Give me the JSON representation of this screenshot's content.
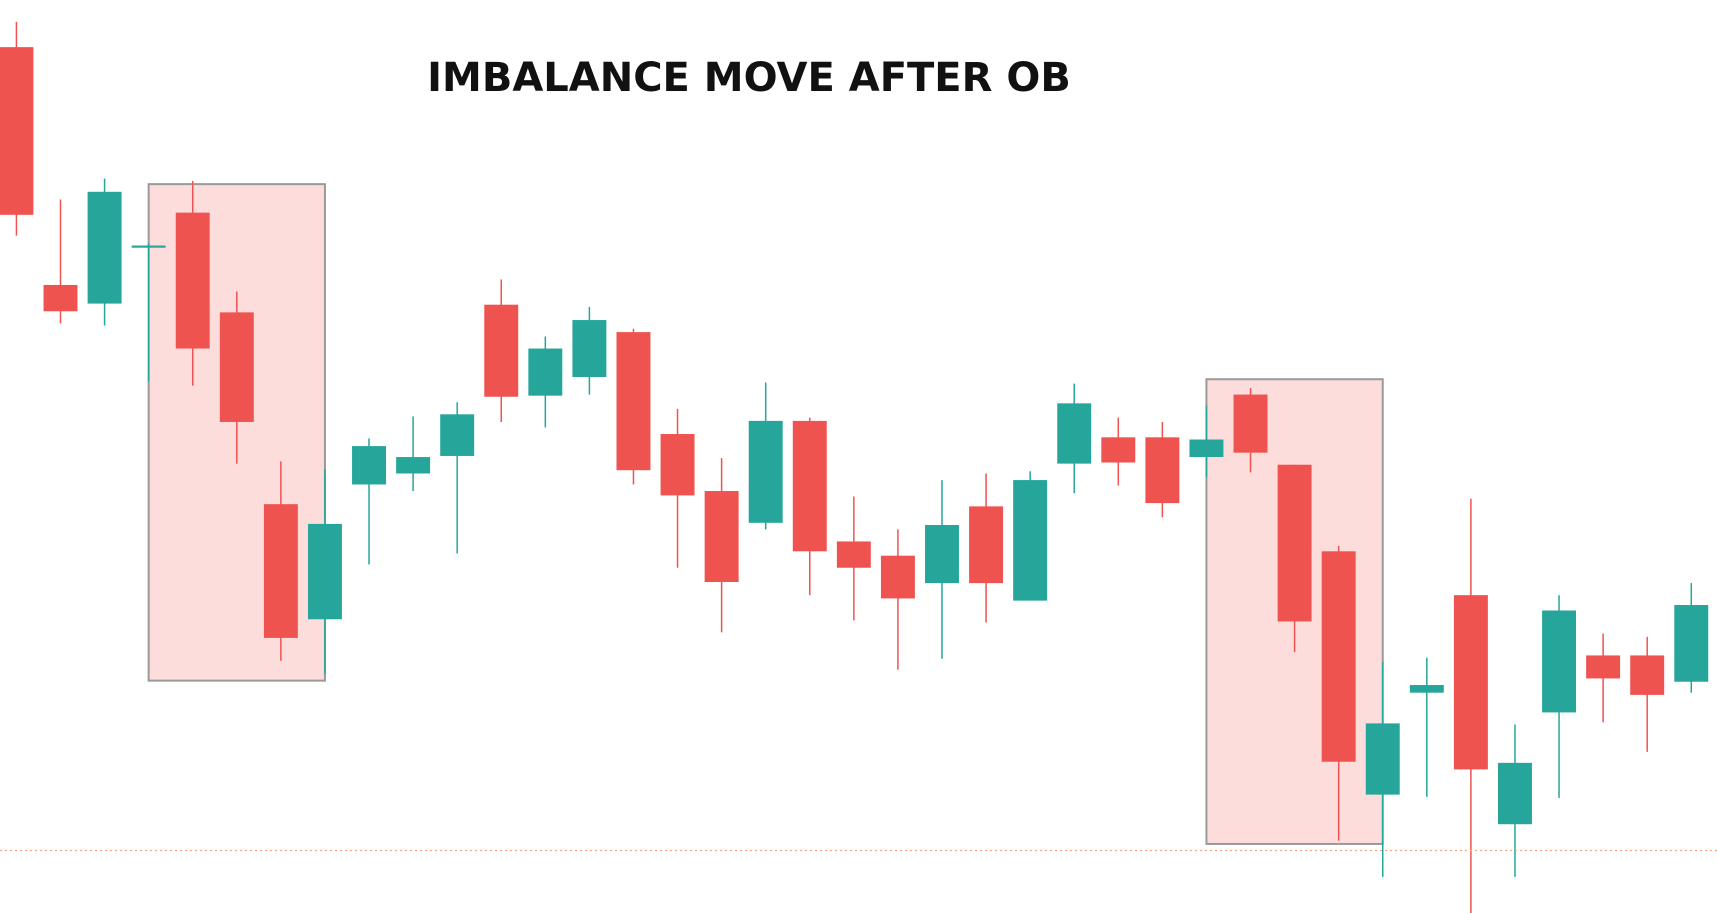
{
  "chart_data": {
    "type": "candlestick",
    "title": "IMBALANCE MOVE AFTER OB",
    "up_color": "#26a69a",
    "down_color": "#ef5350",
    "ylim": [
      0,
      833
    ],
    "open": [
      790,
      573,
      556,
      607,
      639,
      548,
      373,
      268,
      391,
      401,
      417,
      555,
      472,
      489,
      530,
      437,
      385,
      356,
      449,
      339,
      326,
      301,
      371,
      285,
      410,
      434,
      434,
      416,
      473,
      409,
      330,
      108,
      201,
      290,
      81,
      183,
      235,
      235,
      211
    ],
    "high": [
      813,
      651,
      670,
      611,
      668,
      567,
      412,
      405,
      433,
      453,
      466,
      578,
      526,
      553,
      533,
      460,
      415,
      484,
      452,
      380,
      350,
      395,
      401,
      403,
      483,
      452,
      448,
      463,
      479,
      409,
      335,
      229,
      233,
      378,
      172,
      290,
      255,
      252,
      301
    ],
    "low": [
      618,
      538,
      536,
      485,
      481,
      410,
      230,
      218,
      318,
      385,
      328,
      448,
      443,
      473,
      391,
      315,
      256,
      350,
      290,
      267,
      222,
      232,
      265,
      285,
      383,
      390,
      361,
      398,
      402,
      238,
      66,
      33,
      106,
      0,
      33,
      105,
      174,
      147,
      201
    ],
    "close": [
      637,
      549,
      658,
      609,
      515,
      448,
      251,
      355,
      426,
      416,
      455,
      471,
      515,
      541,
      404,
      381,
      302,
      449,
      330,
      315,
      287,
      354,
      301,
      395,
      465,
      411,
      374,
      432,
      420,
      266,
      138,
      173,
      208,
      131,
      137,
      276,
      214,
      199,
      281
    ],
    "zones": [
      {
        "x": [
          3,
          7
        ],
        "y": [
          212,
          665
        ],
        "color": "#fddcdc"
      },
      {
        "x": [
          27,
          31
        ],
        "y": [
          63,
          487
        ],
        "color": "#fddcdc"
      }
    ],
    "hline": {
      "value": 57,
      "color": "#f4a582"
    }
  }
}
